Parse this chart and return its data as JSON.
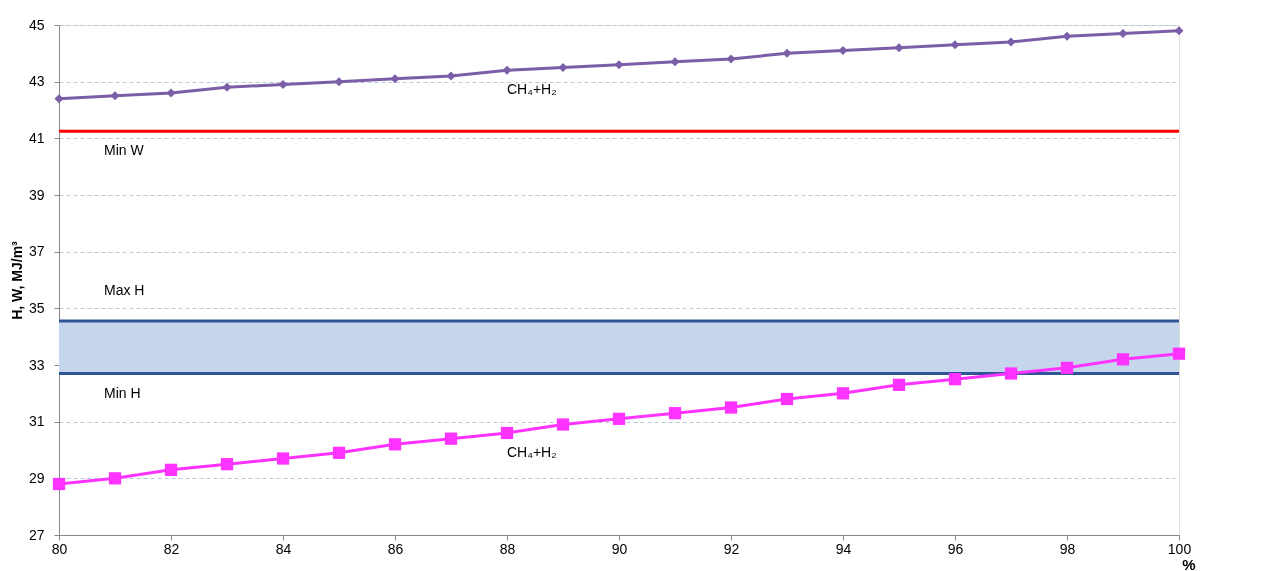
{
  "chart_data": {
    "type": "line",
    "xlabel": "%",
    "ylabel": "H, W, MJ/m³",
    "x": [
      80,
      81,
      82,
      83,
      84,
      85,
      86,
      87,
      88,
      89,
      90,
      91,
      92,
      93,
      94,
      95,
      96,
      97,
      98,
      99,
      100
    ],
    "series": [
      {
        "name": "CH₄+H₂",
        "color": "#7b5ea7",
        "marker": "diamond",
        "values": [
          42.4,
          42.5,
          42.6,
          42.8,
          42.9,
          43.0,
          43.1,
          43.2,
          43.4,
          43.5,
          43.6,
          43.7,
          43.8,
          44.0,
          44.1,
          44.2,
          44.3,
          44.4,
          44.6,
          44.7,
          44.8
        ]
      },
      {
        "name": "CH₄+H₂",
        "color": "#ff33ff",
        "marker": "square",
        "values": [
          28.8,
          29.0,
          29.3,
          29.5,
          29.7,
          29.9,
          30.2,
          30.4,
          30.6,
          30.9,
          31.1,
          31.3,
          31.5,
          31.8,
          32.0,
          32.3,
          32.5,
          32.7,
          32.9,
          33.2,
          33.4
        ]
      }
    ],
    "xlim": [
      80,
      100
    ],
    "xticks": [
      80,
      82,
      84,
      86,
      88,
      90,
      92,
      94,
      96,
      98,
      100
    ],
    "ylim": [
      27,
      45
    ],
    "yticks": [
      27,
      29,
      31,
      33,
      35,
      37,
      39,
      41,
      43,
      45
    ],
    "grid": "y",
    "line_style": "solid",
    "ref_lines": [
      {
        "axis": "y",
        "value": 41.25,
        "label": "Min W",
        "color": "#ff0000"
      },
      {
        "axis": "y",
        "value": 34.55,
        "label": "Max H",
        "color": "#2f5597"
      },
      {
        "axis": "y",
        "value": 32.7,
        "label": "Min H",
        "color": "#2f5597"
      }
    ],
    "bands": [
      {
        "axis": "y",
        "from": 32.7,
        "to": 34.55,
        "color": "#c5d5ec"
      }
    ]
  }
}
